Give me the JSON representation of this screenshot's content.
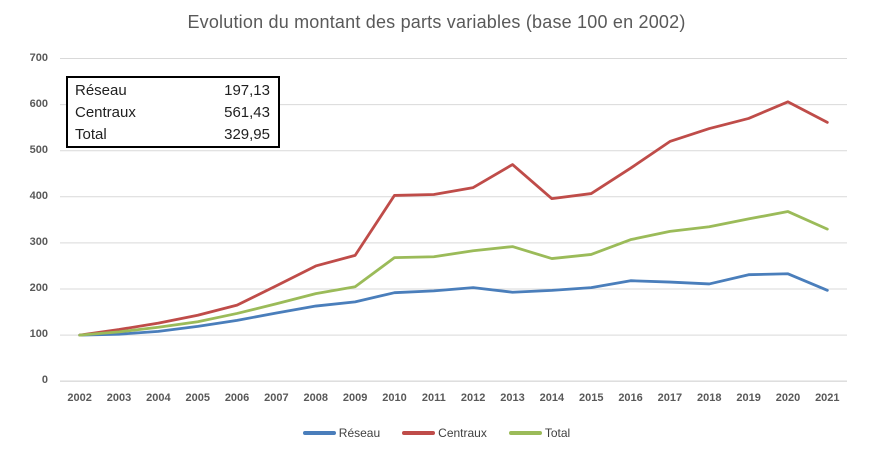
{
  "title": "Evolution du montant des parts variables (base 100 en 2002)",
  "info_box": {
    "rows": [
      {
        "label": "Réseau",
        "value": "197,13"
      },
      {
        "label": "Centraux",
        "value": "561,43"
      },
      {
        "label": "Total",
        "value": "329,95"
      }
    ]
  },
  "colors": {
    "reseau": "#4A7EBB",
    "centraux": "#BF4C49",
    "total": "#9BBB59",
    "gridline": "#D9D9D9",
    "axis_text": "#595959",
    "title_text": "#595959",
    "box_border": "#000000"
  },
  "legend": [
    {
      "name": "reseau",
      "label": "Réseau",
      "color": "#4A7EBB"
    },
    {
      "name": "centraux",
      "label": "Centraux",
      "color": "#BF4C49"
    },
    {
      "name": "total",
      "label": "Total",
      "color": "#9BBB59"
    }
  ],
  "chart_data": {
    "type": "line",
    "title": "Evolution du montant des parts variables (base 100 en 2002)",
    "categories": [
      "2002",
      "2003",
      "2004",
      "2005",
      "2006",
      "2007",
      "2008",
      "2009",
      "2010",
      "2011",
      "2012",
      "2013",
      "2014",
      "2015",
      "2016",
      "2017",
      "2018",
      "2019",
      "2020",
      "2021"
    ],
    "series": [
      {
        "name": "Réseau",
        "color": "#4A7EBB",
        "values": [
          100,
          102,
          108,
          119,
          132,
          148,
          163,
          172,
          192,
          196,
          203,
          193,
          197,
          203,
          218,
          215,
          211,
          231,
          233,
          197.13
        ]
      },
      {
        "name": "Centraux",
        "color": "#BF4C49",
        "values": [
          100,
          112,
          126,
          143,
          165,
          207,
          250,
          273,
          403,
          405,
          420,
          470,
          396,
          407,
          462,
          520,
          548,
          570,
          606,
          561.43
        ]
      },
      {
        "name": "Total",
        "color": "#9BBB59",
        "values": [
          100,
          107,
          117,
          129,
          147,
          168,
          190,
          205,
          268,
          270,
          283,
          292,
          266,
          275,
          307,
          325,
          335,
          352,
          368,
          329.95
        ]
      }
    ],
    "ylim": [
      0,
      700
    ],
    "yticks": [
      0,
      100,
      200,
      300,
      400,
      500,
      600,
      700
    ],
    "grid": true,
    "legend_position": "bottom"
  }
}
